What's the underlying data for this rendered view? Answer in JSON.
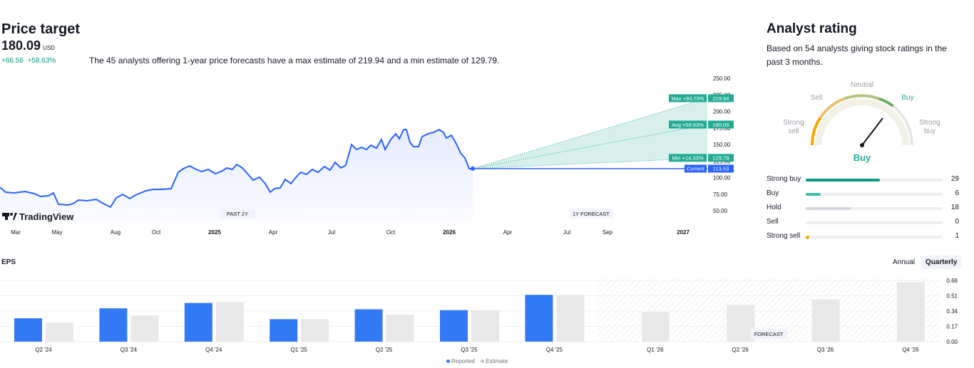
{
  "price_target": {
    "title": "Price target",
    "value": "180.09",
    "currency": "USD",
    "change": "+66.56",
    "change_pct": "+58.63%",
    "description": "The 45 analysts offering 1-year price forecasts have a max estimate of 219.94 and a min estimate of 129.79.",
    "logo_text": "TradingView",
    "past_label": "PAST 2Y",
    "forecast_label": "1Y FORECAST",
    "x_labels": [
      "Mar",
      "May",
      "Aug",
      "Oct",
      "2025",
      "Apr",
      "Jul",
      "Oct",
      "2026",
      "Apr",
      "Jul",
      "Sep",
      "2027"
    ],
    "y_labels": [
      "250.00",
      "225.00",
      "200.00",
      "175.00",
      "150.00",
      "125.00",
      "100.00",
      "75.00",
      "50.00"
    ],
    "markers": {
      "max": {
        "label": "Max +93.73%",
        "value": "219.94"
      },
      "avg": {
        "label": "Avg +58.63%",
        "value": "180.09"
      },
      "min": {
        "label": "Min +14.33%",
        "value": "129.79"
      },
      "current": {
        "label": "Current",
        "value": "113.53"
      }
    },
    "colors": {
      "line": "#2962ff",
      "forecast": "#22ab94",
      "current": "#2962ff"
    }
  },
  "analyst_rating": {
    "title": "Analyst rating",
    "subtitle": "Based on 54 analysts giving stock ratings in the past 3 months.",
    "gauge_labels": {
      "strong_sell": [
        "Strong",
        "sell"
      ],
      "sell": "Sell",
      "neutral": "Neutral",
      "buy": "Buy",
      "strong_buy": [
        "Strong",
        "buy"
      ]
    },
    "verdict": "Buy",
    "rows": [
      {
        "label": "Strong buy",
        "count": "29",
        "fraction": 0.54,
        "color": "#089981"
      },
      {
        "label": "Buy",
        "count": "6",
        "fraction": 0.11,
        "color": "#42bda8"
      },
      {
        "label": "Hold",
        "count": "18",
        "fraction": 0.33,
        "color": "#d1d4dc"
      },
      {
        "label": "Sell",
        "count": "0",
        "fraction": 0.0,
        "color": "#f7a600"
      },
      {
        "label": "Strong sell",
        "count": "1",
        "fraction": 0.02,
        "color": "#f7a600"
      }
    ]
  },
  "eps": {
    "title": "EPS",
    "tabs": [
      "Annual",
      "Quarterly"
    ],
    "active_tab": "Quarterly",
    "forecast_label": "FORECAST",
    "legend": {
      "reported": "Reported",
      "estimate": "Estimate"
    },
    "y_labels": [
      "0.68",
      "0.51",
      "0.34",
      "0.17",
      "0.00"
    ],
    "chart_data": {
      "type": "bar",
      "categories": [
        "Q2 '24",
        "Q3 '24",
        "Q4 '24",
        "Q1 '25",
        "Q2 '25",
        "Q3 '25",
        "Q4 '25",
        "Q1 '26",
        "Q2 '26",
        "Q3 '26",
        "Q4 '26"
      ],
      "series": [
        {
          "name": "Reported",
          "values": [
            0.26,
            0.37,
            0.43,
            0.25,
            0.36,
            0.35,
            0.52,
            null,
            null,
            null,
            null
          ]
        },
        {
          "name": "Estimate",
          "values": [
            0.21,
            0.29,
            0.44,
            0.25,
            0.3,
            0.35,
            0.52,
            0.33,
            0.41,
            0.47,
            0.66
          ]
        }
      ],
      "ylim": [
        0,
        0.68
      ],
      "colors": {
        "reported": "#3179f5",
        "estimate": "#e8e8e8"
      }
    }
  }
}
